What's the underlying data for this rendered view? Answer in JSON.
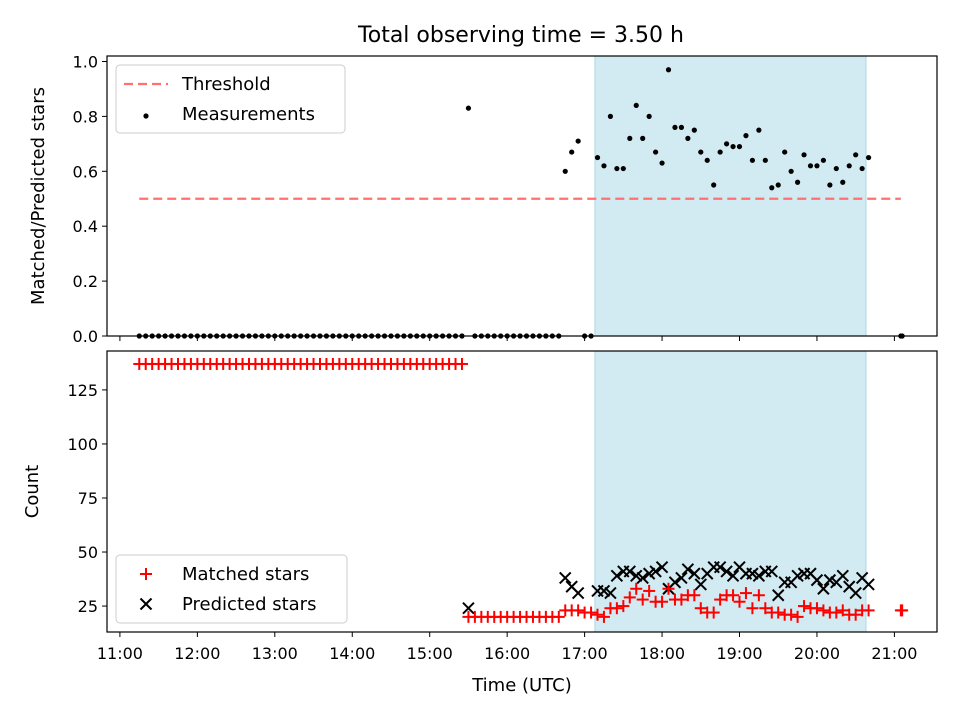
{
  "title": "Total observing time = 3.50 h",
  "chart_data": [
    {
      "type": "scatter",
      "ylabel": "Matched/Predicted stars",
      "ylim": [
        0,
        1.02
      ],
      "yticks": [
        "0.0",
        "0.2",
        "0.4",
        "0.6",
        "0.8",
        "1.0"
      ],
      "xlim": [
        "10:50",
        "21:33"
      ],
      "shaded_region": {
        "start": "17:08",
        "end": "20:38",
        "color": "#add8e6"
      },
      "legend": {
        "placement": "top-left",
        "entries": [
          "Threshold",
          "Measurements"
        ]
      },
      "threshold": {
        "name": "Threshold",
        "y": 0.5,
        "x": [
          "11:15",
          "21:05"
        ],
        "color": "#ff7070"
      },
      "measurements": {
        "name": "Measurements",
        "color": "#000000",
        "x": [
          "11:15",
          "11:20",
          "11:25",
          "11:30",
          "11:35",
          "11:40",
          "11:45",
          "11:50",
          "11:55",
          "12:00",
          "12:05",
          "12:10",
          "12:15",
          "12:20",
          "12:25",
          "12:30",
          "12:35",
          "12:40",
          "12:45",
          "12:50",
          "12:55",
          "13:00",
          "13:05",
          "13:10",
          "13:15",
          "13:20",
          "13:25",
          "13:30",
          "13:35",
          "13:40",
          "13:45",
          "13:50",
          "13:55",
          "14:00",
          "14:05",
          "14:10",
          "14:15",
          "14:20",
          "14:25",
          "14:30",
          "14:35",
          "14:40",
          "14:45",
          "14:50",
          "14:55",
          "15:00",
          "15:05",
          "15:10",
          "15:15",
          "15:20",
          "15:25",
          "15:30",
          "15:35",
          "15:40",
          "15:45",
          "15:50",
          "15:55",
          "16:00",
          "16:05",
          "16:10",
          "16:15",
          "16:20",
          "16:25",
          "16:30",
          "16:35",
          "16:40",
          "16:45",
          "16:50",
          "16:55",
          "17:00",
          "17:05",
          "17:10",
          "17:15",
          "17:20",
          "17:25",
          "17:30",
          "17:35",
          "17:40",
          "17:45",
          "17:50",
          "17:55",
          "18:00",
          "18:05",
          "18:10",
          "18:15",
          "18:20",
          "18:25",
          "18:30",
          "18:35",
          "18:40",
          "18:45",
          "18:50",
          "18:55",
          "19:00",
          "19:05",
          "19:10",
          "19:15",
          "19:20",
          "19:25",
          "19:30",
          "19:35",
          "19:40",
          "19:45",
          "19:50",
          "19:55",
          "20:00",
          "20:05",
          "20:10",
          "20:15",
          "20:20",
          "20:25",
          "20:30",
          "20:35",
          "20:40",
          "21:05",
          "21:06"
        ],
        "y": [
          0,
          0,
          0,
          0,
          0,
          0,
          0,
          0,
          0,
          0,
          0,
          0,
          0,
          0,
          0,
          0,
          0,
          0,
          0,
          0,
          0,
          0,
          0,
          0,
          0,
          0,
          0,
          0,
          0,
          0,
          0,
          0,
          0,
          0,
          0,
          0,
          0,
          0,
          0,
          0,
          0,
          0,
          0,
          0,
          0,
          0,
          0,
          0,
          0,
          0,
          0,
          0.83,
          0,
          0,
          0,
          0,
          0,
          0,
          0,
          0,
          0,
          0,
          0,
          0,
          0,
          0,
          0.6,
          0.67,
          0.71,
          0,
          0,
          0.65,
          0.62,
          0.8,
          0.61,
          0.61,
          0.72,
          0.84,
          0.72,
          0.8,
          0.67,
          0.63,
          0.97,
          0.76,
          0.76,
          0.72,
          0.75,
          0.67,
          0.64,
          0.55,
          0.67,
          0.7,
          0.69,
          0.69,
          0.73,
          0.64,
          0.75,
          0.64,
          0.54,
          0.55,
          0.67,
          0.6,
          0.56,
          0.66,
          0.62,
          0.62,
          0.64,
          0.55,
          0.61,
          0.56,
          0.62,
          0.66,
          0.61,
          0.65,
          0,
          0
        ]
      }
    },
    {
      "type": "scatter",
      "title": "",
      "xlabel": "Time (UTC)",
      "ylabel": "Count",
      "ylim": [
        13,
        143
      ],
      "yticks": [
        "25",
        "50",
        "75",
        "100",
        "125"
      ],
      "xticks": [
        "11:00",
        "12:00",
        "13:00",
        "14:00",
        "15:00",
        "16:00",
        "17:00",
        "18:00",
        "19:00",
        "20:00",
        "21:00"
      ],
      "xlim": [
        "10:50",
        "21:33"
      ],
      "shaded_region": {
        "start": "17:08",
        "end": "20:38",
        "color": "#add8e6"
      },
      "legend": {
        "placement": "bottom-left",
        "entries": [
          "Matched stars",
          "Predicted stars"
        ]
      },
      "series": [
        {
          "name": "Matched stars",
          "marker": "plus",
          "color": "#ff0000",
          "x": [
            "11:15",
            "11:20",
            "11:25",
            "11:30",
            "11:35",
            "11:40",
            "11:45",
            "11:50",
            "11:55",
            "12:00",
            "12:05",
            "12:10",
            "12:15",
            "12:20",
            "12:25",
            "12:30",
            "12:35",
            "12:40",
            "12:45",
            "12:50",
            "12:55",
            "13:00",
            "13:05",
            "13:10",
            "13:15",
            "13:20",
            "13:25",
            "13:30",
            "13:35",
            "13:40",
            "13:45",
            "13:50",
            "13:55",
            "14:00",
            "14:05",
            "14:10",
            "14:15",
            "14:20",
            "14:25",
            "14:30",
            "14:35",
            "14:40",
            "14:45",
            "14:50",
            "14:55",
            "15:00",
            "15:05",
            "15:10",
            "15:15",
            "15:20",
            "15:25",
            "15:30",
            "15:35",
            "15:40",
            "15:45",
            "15:50",
            "15:55",
            "16:00",
            "16:05",
            "16:10",
            "16:15",
            "16:20",
            "16:25",
            "16:30",
            "16:35",
            "16:40",
            "16:45",
            "16:50",
            "16:55",
            "17:00",
            "17:05",
            "17:10",
            "17:15",
            "17:20",
            "17:25",
            "17:30",
            "17:35",
            "17:40",
            "17:45",
            "17:50",
            "17:55",
            "18:00",
            "18:05",
            "18:10",
            "18:15",
            "18:20",
            "18:25",
            "18:30",
            "18:35",
            "18:40",
            "18:45",
            "18:50",
            "18:55",
            "19:00",
            "19:05",
            "19:10",
            "19:15",
            "19:20",
            "19:25",
            "19:30",
            "19:35",
            "19:40",
            "19:45",
            "19:50",
            "19:55",
            "20:00",
            "20:05",
            "20:10",
            "20:15",
            "20:20",
            "20:25",
            "20:30",
            "20:35",
            "20:40",
            "21:05",
            "21:06"
          ],
          "y": [
            137,
            137,
            137,
            137,
            137,
            137,
            137,
            137,
            137,
            137,
            137,
            137,
            137,
            137,
            137,
            137,
            137,
            137,
            137,
            137,
            137,
            137,
            137,
            137,
            137,
            137,
            137,
            137,
            137,
            137,
            137,
            137,
            137,
            137,
            137,
            137,
            137,
            137,
            137,
            137,
            137,
            137,
            137,
            137,
            137,
            137,
            137,
            137,
            137,
            137,
            137,
            20,
            20,
            20,
            20,
            20,
            20,
            20,
            20,
            20,
            20,
            20,
            20,
            20,
            20,
            20,
            23,
            23,
            23,
            22,
            22,
            21,
            20,
            24,
            24,
            25,
            29,
            33,
            28,
            32,
            27,
            27,
            33,
            28,
            28,
            30,
            30,
            24,
            22,
            22,
            28,
            30,
            30,
            27,
            31,
            24,
            30,
            24,
            22,
            22,
            21,
            21,
            20,
            25,
            24,
            24,
            23,
            22,
            22,
            23,
            21,
            21,
            23,
            23,
            23,
            23
          ]
        },
        {
          "name": "Predicted stars",
          "marker": "x",
          "color": "#000000",
          "x": [
            "15:30",
            "16:45",
            "16:50",
            "16:55",
            "17:10",
            "17:15",
            "17:20",
            "17:25",
            "17:30",
            "17:35",
            "17:40",
            "17:45",
            "17:50",
            "17:55",
            "18:00",
            "18:05",
            "18:10",
            "18:15",
            "18:20",
            "18:25",
            "18:30",
            "18:35",
            "18:40",
            "18:45",
            "18:50",
            "18:55",
            "19:00",
            "19:05",
            "19:10",
            "19:15",
            "19:20",
            "19:25",
            "19:30",
            "19:35",
            "19:40",
            "19:45",
            "19:50",
            "19:55",
            "20:00",
            "20:05",
            "20:10",
            "20:15",
            "20:20",
            "20:25",
            "20:30",
            "20:35",
            "20:40"
          ],
          "y": [
            24,
            38,
            34,
            31,
            32,
            32,
            31,
            39,
            41,
            41,
            39,
            38,
            40,
            41,
            43,
            33,
            36,
            38,
            42,
            40,
            35,
            40,
            43,
            43,
            41,
            39,
            43,
            40,
            40,
            39,
            41,
            41,
            30,
            36,
            36,
            39,
            40,
            40,
            37,
            33,
            37,
            36,
            39,
            34,
            31,
            38,
            35
          ]
        }
      ]
    }
  ]
}
